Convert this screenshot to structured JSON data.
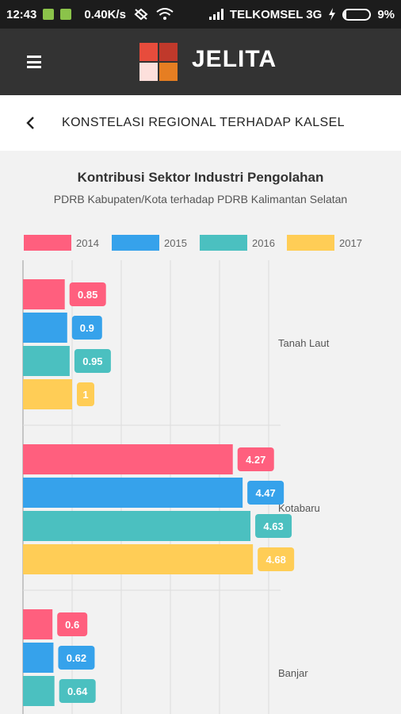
{
  "status_bar": {
    "time": "12:43",
    "speed": "0.40K/s",
    "carrier": "TELKOMSEL 3G",
    "battery": "9%",
    "battery_level": 0.09,
    "icons": [
      "notification-icon",
      "notification-icon",
      "mute-icon",
      "wifi-icon",
      "signal-icon",
      "charging-icon",
      "battery-icon"
    ]
  },
  "app_bar": {
    "title": "JELITA",
    "logo_colors": [
      "#e74c3c",
      "#c0392b",
      "#fde0dc",
      "#e67e22"
    ]
  },
  "sub_header": {
    "title": "KONSTELASI REGIONAL TERHADAP KALSEL"
  },
  "chart_data": {
    "type": "bar",
    "orientation": "horizontal",
    "title": "Kontribusi Sektor Industri Pengolahan",
    "subtitle": "PDRB Kabupaten/Kota terhadap PDRB Kalimantan Selatan",
    "categories": [
      "Tanah Laut",
      "Kotabaru",
      "Banjar"
    ],
    "series": [
      {
        "name": "2014",
        "color": "#ff5f7e",
        "values": [
          0.85,
          4.27,
          0.6
        ]
      },
      {
        "name": "2015",
        "color": "#36a2eb",
        "values": [
          0.9,
          4.47,
          0.62
        ]
      },
      {
        "name": "2016",
        "color": "#4bc0c0",
        "values": [
          0.95,
          4.63,
          0.64
        ]
      },
      {
        "name": "2017",
        "color": "#ffcd56",
        "values": [
          1,
          4.68,
          null
        ]
      }
    ],
    "xlim": [
      0,
      5
    ],
    "grid": true,
    "legend_position": "top"
  }
}
